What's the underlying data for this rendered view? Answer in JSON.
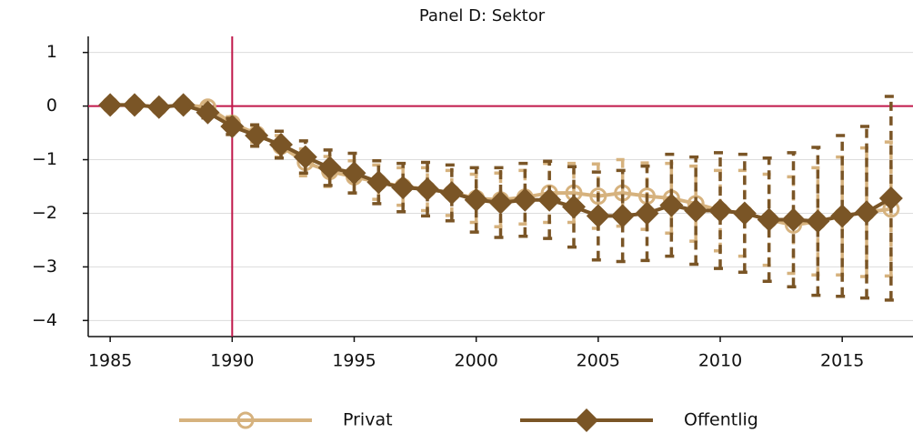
{
  "chart_data": {
    "type": "errorbar-line",
    "title": "Panel D: Sektor",
    "x": [
      1985,
      1986,
      1987,
      1988,
      1989,
      1990,
      1991,
      1992,
      1993,
      1994,
      1995,
      1996,
      1997,
      1998,
      1999,
      2000,
      2001,
      2002,
      2003,
      2004,
      2005,
      2006,
      2007,
      2008,
      2009,
      2010,
      2011,
      2012,
      2013,
      2014,
      2015,
      2016,
      2017
    ],
    "xlim": [
      1984.1,
      2017.9
    ],
    "xticks": [
      1985,
      1990,
      1995,
      2000,
      2005,
      2010,
      2015
    ],
    "ylim": [
      -4.3,
      1.3
    ],
    "yticks": [
      1,
      0,
      {
        "value": -1,
        "label": "−1"
      },
      {
        "value": -2,
        "label": "−2"
      },
      {
        "value": -3,
        "label": "−3"
      },
      {
        "value": -4,
        "label": "−4"
      }
    ],
    "grid": true,
    "hline": 0,
    "vline": 1990,
    "reference_color": "#c0174a",
    "series": [
      {
        "name": "Privat",
        "color": "#d6b27e",
        "marker": "circle",
        "values": [
          0.02,
          0.02,
          -0.02,
          0.02,
          -0.02,
          -0.32,
          -0.52,
          -0.75,
          -1.05,
          -1.22,
          -1.32,
          -1.42,
          -1.5,
          -1.55,
          -1.62,
          -1.72,
          -1.75,
          -1.7,
          -1.62,
          -1.62,
          -1.68,
          -1.62,
          -1.68,
          -1.72,
          -1.82,
          -1.95,
          -2.0,
          -2.12,
          -2.22,
          -2.15,
          -2.05,
          -1.98,
          -1.92
        ],
        "errors": [
          0.04,
          0.04,
          0.04,
          0.05,
          0.08,
          0.12,
          0.16,
          0.2,
          0.25,
          0.28,
          0.3,
          0.32,
          0.35,
          0.4,
          0.42,
          0.45,
          0.5,
          0.5,
          0.55,
          0.55,
          0.6,
          0.62,
          0.62,
          0.65,
          0.7,
          0.75,
          0.8,
          0.85,
          0.9,
          1.0,
          1.1,
          1.2,
          1.25
        ]
      },
      {
        "name": "Offentlig",
        "color": "#7a5526",
        "marker": "diamond",
        "values": [
          0.02,
          0.02,
          -0.02,
          0.02,
          -0.12,
          -0.38,
          -0.55,
          -0.72,
          -0.95,
          -1.15,
          -1.25,
          -1.42,
          -1.52,
          -1.55,
          -1.62,
          -1.75,
          -1.8,
          -1.75,
          -1.75,
          -1.88,
          -2.05,
          -2.05,
          -2.0,
          -1.85,
          -1.95,
          -1.95,
          -2.0,
          -2.12,
          -2.12,
          -2.15,
          -2.05,
          -1.98,
          -1.72
        ],
        "errors": [
          0.05,
          0.05,
          0.05,
          0.05,
          0.1,
          0.15,
          0.2,
          0.25,
          0.3,
          0.33,
          0.37,
          0.4,
          0.45,
          0.5,
          0.52,
          0.6,
          0.65,
          0.68,
          0.72,
          0.75,
          0.82,
          0.85,
          0.88,
          0.95,
          1.0,
          1.08,
          1.1,
          1.15,
          1.25,
          1.38,
          1.5,
          1.6,
          1.9
        ]
      }
    ]
  }
}
